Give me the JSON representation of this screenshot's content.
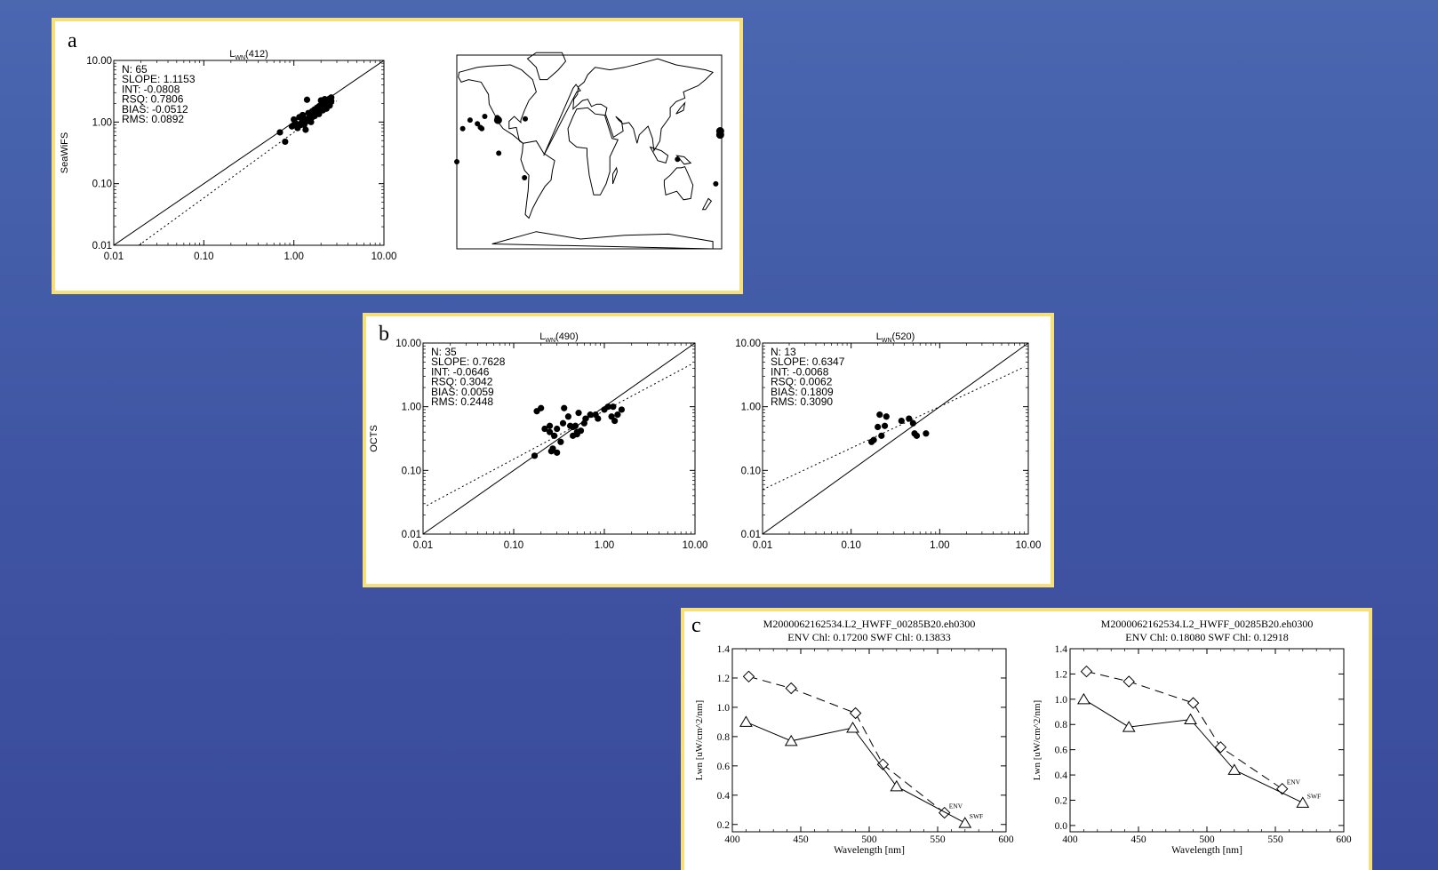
{
  "colors": {
    "background": "#4259a8",
    "panel_border": "#f7e07a",
    "ink": "#000000",
    "panel_bg": "#ffffff"
  },
  "panels": {
    "a": {
      "label": "a"
    },
    "b": {
      "label": "b"
    },
    "c": {
      "label": "c"
    }
  },
  "chart_data": [
    {
      "id": "a1",
      "type": "scatter",
      "scale": "log",
      "title_main": "L",
      "title_sub": "WN",
      "title_band": "(412)",
      "ylabel": "SeaWiFS",
      "xlabel": "",
      "xlim": [
        0.01,
        10
      ],
      "ylim": [
        0.01,
        10
      ],
      "ticks": [
        "0.01",
        "0.10",
        "1.00",
        "10.00"
      ],
      "stats": [
        "N: 65",
        "SLOPE: 1.1153",
        "INT: -0.0808",
        "RSQ: 0.7806",
        "BIAS: -0.0512",
        "RMS: 0.0892"
      ],
      "lines": [
        {
          "name": "1:1",
          "style": "solid",
          "x": [
            0.01,
            10
          ],
          "y": [
            0.01,
            10
          ]
        },
        {
          "name": "fit",
          "style": "dotted",
          "x": [
            0.019,
            3.0
          ],
          "y": [
            0.01,
            2.2
          ]
        }
      ],
      "x": [
        0.7,
        0.8,
        0.95,
        1.0,
        1.05,
        1.1,
        1.15,
        1.2,
        1.25,
        1.3,
        1.35,
        1.4,
        1.45,
        1.5,
        1.55,
        1.6,
        1.65,
        1.7,
        1.75,
        1.8,
        1.85,
        1.9,
        1.95,
        2.0,
        2.05,
        2.1,
        2.15,
        2.2,
        2.25,
        2.3,
        2.35,
        2.4,
        2.45,
        2.5,
        2.55,
        2.6,
        1.35,
        1.5,
        1.7,
        1.9,
        2.1,
        2.3,
        2.5,
        1.2,
        1.4,
        1.6,
        1.8,
        2.0,
        2.2,
        2.4,
        1.1,
        1.3,
        1.5,
        1.7,
        1.9,
        2.1,
        2.3,
        2.0,
        2.2,
        2.4,
        1.6,
        1.8,
        2.6,
        1.0,
        1.25
      ],
      "y": [
        0.68,
        0.48,
        0.85,
        1.1,
        0.95,
        0.8,
        1.2,
        0.9,
        1.3,
        1.15,
        0.75,
        2.3,
        1.4,
        1.2,
        1.0,
        1.5,
        1.3,
        1.6,
        1.4,
        1.7,
        1.5,
        1.8,
        1.6,
        1.9,
        1.7,
        2.0,
        1.75,
        2.1,
        1.9,
        2.2,
        1.95,
        2.3,
        2.0,
        2.4,
        2.1,
        2.5,
        1.0,
        1.1,
        1.25,
        1.35,
        1.55,
        1.65,
        1.85,
        0.95,
        1.05,
        1.2,
        1.45,
        1.6,
        1.8,
        1.95,
        0.85,
        0.9,
        1.3,
        1.45,
        1.55,
        1.9,
        2.05,
        2.25,
        2.35,
        2.15,
        1.35,
        1.6,
        2.2,
        0.9,
        1.05
      ]
    },
    {
      "id": "map",
      "type": "map",
      "stations": [
        {
          "lat": 15,
          "lon": -170,
          "size": 6
        },
        {
          "lat": 18,
          "lon": -170,
          "size": 6
        },
        {
          "lat": -7,
          "lon": -168,
          "size": 4
        },
        {
          "lat": -25,
          "lon": -176,
          "size": 4
        },
        {
          "lat": 27,
          "lon": -150,
          "size": 4
        },
        {
          "lat": 24,
          "lon": -140,
          "size": 4
        },
        {
          "lat": 20,
          "lon": -134,
          "size": 4
        },
        {
          "lat": 21,
          "lon": -136,
          "size": 4
        },
        {
          "lat": 30,
          "lon": -130,
          "size": 4
        },
        {
          "lat": 27,
          "lon": -112,
          "size": 6
        },
        {
          "lat": 29,
          "lon": -113,
          "size": 4
        },
        {
          "lat": 0,
          "lon": -111,
          "size": 4
        },
        {
          "lat": -20,
          "lon": -76,
          "size": 4
        },
        {
          "lat": 28,
          "lon": -75,
          "size": 4
        },
        {
          "lat": 20,
          "lon": -160,
          "size": 4
        },
        {
          "lat": -5,
          "lon": 132,
          "size": 4
        }
      ]
    },
    {
      "id": "b1",
      "type": "scatter",
      "scale": "log",
      "title_main": "L",
      "title_sub": "WN",
      "title_band": "(490)",
      "ylabel": "OCTS",
      "xlabel": "",
      "xlim": [
        0.01,
        10
      ],
      "ylim": [
        0.01,
        10
      ],
      "ticks": [
        "0.01",
        "0.10",
        "1.00",
        "10.00"
      ],
      "stats": [
        "N: 35",
        "SLOPE: 0.7628",
        "INT: -0.0646",
        "RSQ: 0.3042",
        "BIAS: 0.0059",
        "RMS: 0.2448"
      ],
      "lines": [
        {
          "name": "1:1",
          "style": "solid",
          "x": [
            0.01,
            10
          ],
          "y": [
            0.01,
            10
          ]
        },
        {
          "name": "fit",
          "style": "dotted",
          "x": [
            0.011,
            9
          ],
          "y": [
            0.028,
            4.6
          ]
        }
      ],
      "x": [
        0.17,
        0.18,
        0.2,
        0.22,
        0.25,
        0.26,
        0.27,
        0.28,
        0.3,
        0.3,
        0.33,
        0.36,
        0.4,
        0.42,
        0.45,
        0.48,
        0.5,
        0.52,
        0.55,
        0.6,
        0.62,
        0.7,
        0.8,
        0.85,
        1.0,
        1.1,
        1.2,
        1.25,
        1.3,
        1.4,
        1.55,
        0.35,
        0.45,
        0.5,
        0.25
      ],
      "y": [
        0.17,
        0.85,
        0.95,
        0.45,
        0.4,
        0.2,
        0.22,
        0.35,
        0.45,
        0.19,
        0.28,
        0.95,
        0.7,
        0.5,
        0.35,
        0.5,
        0.4,
        0.8,
        0.42,
        0.55,
        0.65,
        0.75,
        0.75,
        0.65,
        0.9,
        1.0,
        0.7,
        1.0,
        0.6,
        0.75,
        0.9,
        0.55,
        0.48,
        0.37,
        0.5
      ]
    },
    {
      "id": "b2",
      "type": "scatter",
      "scale": "log",
      "title_main": "L",
      "title_sub": "WN",
      "title_band": "(520)",
      "ylabel": "",
      "xlabel": "",
      "xlim": [
        0.01,
        10
      ],
      "ylim": [
        0.01,
        10
      ],
      "ticks": [
        "0.01",
        "0.10",
        "1.00",
        "10.00"
      ],
      "stats": [
        "N: 13",
        "SLOPE: 0.6347",
        "INT: -0.0068",
        "RSQ: 0.0062",
        "BIAS: 0.1809",
        "RMS: 0.3090"
      ],
      "lines": [
        {
          "name": "1:1",
          "style": "solid",
          "x": [
            0.01,
            10
          ],
          "y": [
            0.01,
            10
          ]
        },
        {
          "name": "fit",
          "style": "dotted",
          "x": [
            0.01,
            9
          ],
          "y": [
            0.05,
            4.2
          ]
        }
      ],
      "x": [
        0.17,
        0.18,
        0.2,
        0.21,
        0.22,
        0.24,
        0.25,
        0.37,
        0.45,
        0.5,
        0.52,
        0.55,
        0.7
      ],
      "y": [
        0.28,
        0.3,
        0.48,
        0.75,
        0.35,
        0.5,
        0.7,
        0.6,
        0.65,
        0.55,
        0.38,
        0.35,
        0.38
      ]
    },
    {
      "id": "c1",
      "type": "line",
      "title": "M2000062162534.L2_HWFF_00285B20.eh0300",
      "subtitle": "ENV Chl:  0.17200 SWF Chl:  0.13833",
      "xlabel": "Wavelength [nm]",
      "ylabel": "Lwn [uW/cm^2/nm]",
      "xlim": [
        400,
        600
      ],
      "ylim": [
        0.15,
        1.4
      ],
      "xticks": [
        400,
        450,
        500,
        550,
        600
      ],
      "yticks": [
        0.2,
        0.4,
        0.6,
        0.8,
        1.0,
        1.2,
        1.4
      ],
      "ytick_labels": [
        "0.2",
        "0.4",
        "0.6",
        "0.8",
        "1.0",
        "1.2",
        "1.4"
      ],
      "series": [
        {
          "name": "ENV",
          "style": "dashed",
          "marker": "diamond",
          "x": [
            412,
            443,
            490,
            510,
            555
          ],
          "y": [
            1.21,
            1.13,
            0.96,
            0.61,
            0.28
          ]
        },
        {
          "name": "SWF",
          "style": "solid",
          "marker": "triangle",
          "x": [
            410,
            443,
            488,
            520,
            570
          ],
          "y": [
            0.9,
            0.77,
            0.86,
            0.46,
            0.21
          ]
        }
      ]
    },
    {
      "id": "c2",
      "type": "line",
      "title": "M2000062162534.L2_HWFF_00285B20.eh0300",
      "subtitle": "ENV Chl:  0.18080 SWF Chl:  0.12918",
      "xlabel": "Wavelength [nm]",
      "ylabel": "Lwn [uW/cm^2/nm]",
      "xlim": [
        400,
        600
      ],
      "ylim": [
        -0.05,
        1.4
      ],
      "xticks": [
        400,
        450,
        500,
        550,
        600
      ],
      "yticks": [
        0.0,
        0.2,
        0.4,
        0.6,
        0.8,
        1.0,
        1.2,
        1.4
      ],
      "ytick_labels": [
        "0.0",
        "0.2",
        "0.4",
        "0.6",
        "0.8",
        "1.0",
        "1.2",
        "1.4"
      ],
      "series": [
        {
          "name": "ENV",
          "style": "dashed",
          "marker": "diamond",
          "x": [
            412,
            443,
            490,
            510,
            555
          ],
          "y": [
            1.22,
            1.14,
            0.97,
            0.62,
            0.29
          ]
        },
        {
          "name": "SWF",
          "style": "solid",
          "marker": "triangle",
          "x": [
            410,
            443,
            488,
            520,
            570
          ],
          "y": [
            1.0,
            0.78,
            0.84,
            0.44,
            0.18
          ]
        }
      ]
    }
  ]
}
